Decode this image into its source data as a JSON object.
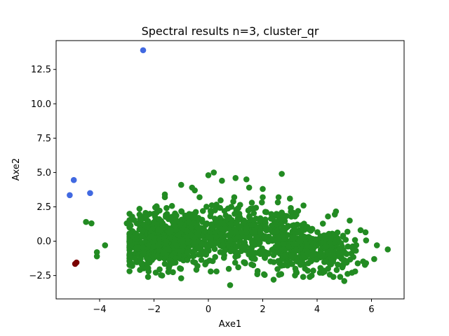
{
  "chart_data": {
    "type": "scatter",
    "title": "Spectral results n=3, cluster_qr",
    "xlabel": "Axe1",
    "ylabel": "Axe2",
    "xlim": [
      -5.6,
      7.2
    ],
    "ylim": [
      -4.2,
      14.6
    ],
    "xticks": [
      -4,
      -2,
      0,
      2,
      4,
      6
    ],
    "yticks": [
      -2.5,
      0.0,
      2.5,
      5.0,
      7.5,
      10.0,
      12.5
    ],
    "ytick_labels": [
      "−2.5",
      "0.0",
      "2.5",
      "5.0",
      "7.5",
      "10.0",
      "12.5"
    ],
    "xtick_labels": [
      "−4",
      "−2",
      "0",
      "2",
      "4",
      "6"
    ],
    "grid": false,
    "legend": "none",
    "series": [
      {
        "color": "#228B22",
        "x": [
          -4.5,
          -4.3,
          -3.8,
          -4.1,
          -4.1,
          -3.0,
          -2.5,
          -2.0,
          -1.6,
          -1.0,
          -0.5,
          0.0,
          0.2,
          0.5,
          1.0,
          1.5,
          1.4,
          2.0,
          2.7,
          3.0,
          3.5,
          0.8,
          -2.8,
          -2.2,
          -1.7,
          -1.0,
          -0.4,
          0.3,
          1.1,
          1.8,
          2.4,
          3.2,
          3.8,
          4.2,
          4.6,
          5.0,
          5.4,
          5.8,
          6.1,
          6.6,
          4.4,
          5.2,
          5.6,
          3.3,
          2.0,
          -0.6,
          -1.6,
          -2.4,
          -2.9,
          -2.6,
          -2.0,
          -1.3,
          -0.8,
          0.4,
          1.3,
          2.2,
          3.0,
          3.6,
          4.8,
          5.3,
          6.2,
          1.6,
          1.9,
          2.8,
          -0.2,
          -1.9,
          -2.3
        ],
        "y": [
          1.4,
          1.3,
          -0.3,
          -0.8,
          -1.1,
          1.3,
          1.4,
          2.0,
          3.2,
          4.1,
          3.7,
          4.8,
          5.0,
          4.4,
          4.6,
          3.9,
          4.5,
          3.8,
          4.9,
          3.1,
          2.6,
          -3.2,
          -1.8,
          -2.2,
          -2.5,
          -2.7,
          -1.8,
          -2.2,
          -1.9,
          -2.4,
          -2.8,
          -2.0,
          -2.5,
          -2.3,
          -2.6,
          -2.9,
          -2.2,
          -1.6,
          -1.3,
          -0.6,
          1.8,
          1.5,
          0.8,
          2.2,
          3.2,
          3.9,
          3.4,
          1.1,
          0.0,
          -0.8,
          -1.2,
          -0.9,
          -0.4,
          0.5,
          -0.2,
          0.3,
          -1.0,
          -0.7,
          -1.1,
          -0.5,
          -0.3,
          2.8,
          1.4,
          -0.4,
          2.2,
          2.5,
          -1.0
        ]
      },
      {
        "color": "#228B22",
        "cloud": true,
        "x_range": [
          -2.9,
          6.2
        ],
        "y_range": [
          -2.6,
          3.2
        ],
        "count": 1500
      },
      {
        "color": "#4169E1",
        "x": [
          -2.4,
          -4.95,
          -4.35,
          -5.1
        ],
        "y": [
          13.9,
          4.45,
          3.5,
          3.35
        ]
      },
      {
        "color": "#7B0000",
        "x": [
          -4.9,
          -4.85
        ],
        "y": [
          -1.65,
          -1.55
        ]
      }
    ]
  }
}
